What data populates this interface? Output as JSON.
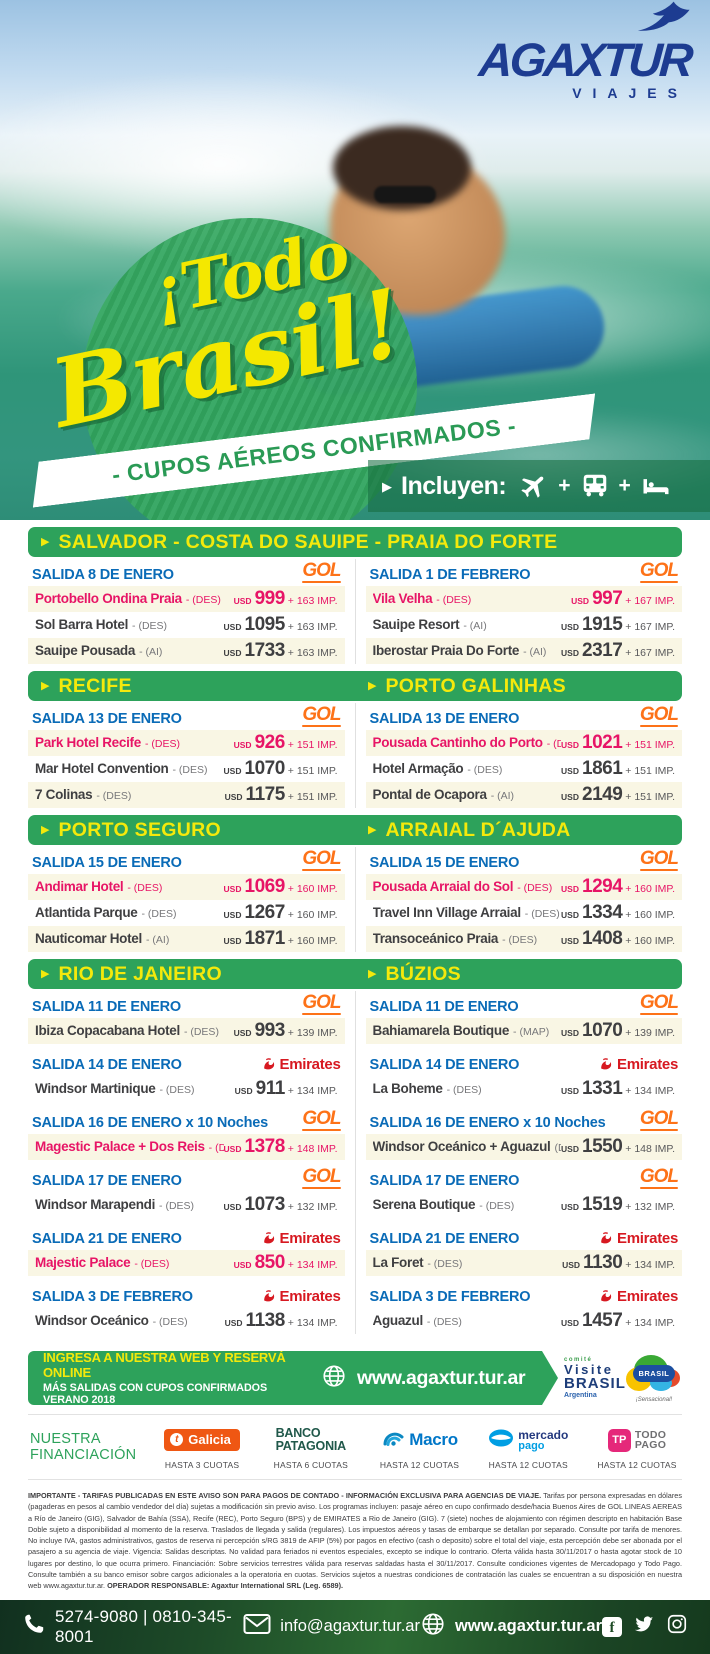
{
  "brand": {
    "name": "AGAXTUR",
    "sub": "VIAJES"
  },
  "ui": {
    "tri": "▶",
    "currency": "USD"
  },
  "hero": {
    "title_word1": "¡Todo",
    "title_word2": "Brasil!",
    "ribbon": "- CUPOS AÉREOS CONFIRMADOS -",
    "includes_label": "Incluyen:",
    "plus": "+",
    "includes_icons": [
      "plane-icon",
      "bus-icon",
      "bed-icon"
    ]
  },
  "colors": {
    "green": "#2da25b",
    "yellow": "#f4e90c",
    "blue_salida": "#0a6bb7",
    "pink_highlight": "#e71566",
    "gol_orange": "#fd7218",
    "emirates_red": "#d71921",
    "cream_row": "#f9f6e4",
    "brand_navy": "#1d3c91"
  },
  "sections": [
    {
      "id": "salvador",
      "headers": [
        {
          "title": "SALVADOR - COSTA DO SAUIPE - PRAIA DO FORTE"
        }
      ],
      "columns": [
        {
          "blocks": [
            {
              "salida": "SALIDA 8 DE ENERO",
              "airline": "GOL",
              "hotels": [
                {
                  "name": "Portobello Ondina Praia",
                  "plan": "- (DES)",
                  "price": "999",
                  "tax": "+ 163 IMP.",
                  "highlight": true
                },
                {
                  "name": "Sol Barra Hotel",
                  "plan": "- (DES)",
                  "price": "1095",
                  "tax": "+ 163 IMP."
                },
                {
                  "name": "Sauipe Pousada",
                  "plan": "- (AI)",
                  "price": "1733",
                  "tax": "+ 163 IMP."
                }
              ]
            }
          ]
        },
        {
          "blocks": [
            {
              "salida": "SALIDA 1 DE FEBRERO",
              "airline": "GOL",
              "hotels": [
                {
                  "name": "Vila Velha",
                  "plan": "- (DES)",
                  "price": "997",
                  "tax": "+ 167 IMP.",
                  "highlight": true
                },
                {
                  "name": "Sauipe Resort",
                  "plan": "- (AI)",
                  "price": "1915",
                  "tax": "+ 167 IMP."
                },
                {
                  "name": "Iberostar Praia Do Forte",
                  "plan": "- (AI)",
                  "price": "2317",
                  "tax": "+ 167 IMP."
                }
              ]
            }
          ]
        }
      ]
    },
    {
      "id": "recife-porto-galinhas",
      "headers": [
        {
          "title": "RECIFE"
        },
        {
          "title": "PORTO GALINHAS"
        }
      ],
      "columns": [
        {
          "blocks": [
            {
              "salida": "SALIDA 13 DE ENERO",
              "airline": "GOL",
              "hotels": [
                {
                  "name": "Park Hotel Recife",
                  "plan": "- (DES)",
                  "price": "926",
                  "tax": "+ 151 IMP.",
                  "highlight": true
                },
                {
                  "name": "Mar Hotel Convention",
                  "plan": "- (DES)",
                  "price": "1070",
                  "tax": "+ 151 IMP."
                },
                {
                  "name": "7 Colinas",
                  "plan": "- (DES)",
                  "price": "1175",
                  "tax": "+ 151 IMP."
                }
              ]
            }
          ]
        },
        {
          "blocks": [
            {
              "salida": "SALIDA 13 DE ENERO",
              "airline": "GOL",
              "hotels": [
                {
                  "name": "Pousada Cantinho do Porto",
                  "plan": "- (DES)",
                  "price": "1021",
                  "tax": "+ 151 IMP.",
                  "highlight": true
                },
                {
                  "name": "Hotel Armação",
                  "plan": "- (DES)",
                  "price": "1861",
                  "tax": "+ 151 IMP."
                },
                {
                  "name": "Pontal de Ocapora",
                  "plan": "- (AI)",
                  "price": "2149",
                  "tax": "+ 151 IMP."
                }
              ]
            }
          ]
        }
      ]
    },
    {
      "id": "porto-seguro-arraial",
      "headers": [
        {
          "title": "PORTO SEGURO"
        },
        {
          "title": "ARRAIAL D´AJUDA"
        }
      ],
      "columns": [
        {
          "blocks": [
            {
              "salida": "SALIDA 15 DE ENERO",
              "airline": "GOL",
              "hotels": [
                {
                  "name": "Andimar Hotel",
                  "plan": "- (DES)",
                  "price": "1069",
                  "tax": "+ 160 IMP.",
                  "highlight": true
                },
                {
                  "name": "Atlantida Parque",
                  "plan": "- (DES)",
                  "price": "1267",
                  "tax": "+ 160 IMP."
                },
                {
                  "name": "Nauticomar Hotel",
                  "plan": "- (AI)",
                  "price": "1871",
                  "tax": "+ 160 IMP."
                }
              ]
            }
          ]
        },
        {
          "blocks": [
            {
              "salida": "SALIDA 15 DE ENERO",
              "airline": "GOL",
              "hotels": [
                {
                  "name": "Pousada Arraial do Sol",
                  "plan": "- (DES)",
                  "price": "1294",
                  "tax": "+ 160 IMP.",
                  "highlight": true
                },
                {
                  "name": "Travel Inn Village Arraial",
                  "plan": "- (DES)",
                  "price": "1334",
                  "tax": "+ 160 IMP."
                },
                {
                  "name": "Transoceánico Praia",
                  "plan": "- (DES)",
                  "price": "1408",
                  "tax": "+ 160 IMP."
                }
              ]
            }
          ]
        }
      ]
    },
    {
      "id": "rio-buzios",
      "headers": [
        {
          "title": "RIO DE JANEIRO"
        },
        {
          "title": "BÚZIOS"
        }
      ],
      "columns": [
        {
          "blocks": [
            {
              "salida": "SALIDA 11 DE ENERO",
              "airline": "GOL",
              "hotels": [
                {
                  "name": "Ibiza Copacabana Hotel",
                  "plan": "- (DES)",
                  "price": "993",
                  "tax": "+ 139 IMP."
                }
              ]
            },
            {
              "salida": "SALIDA 14 DE ENERO",
              "airline": "Emirates",
              "hotels": [
                {
                  "name": "Windsor Martinique",
                  "plan": "- (DES)",
                  "price": "911",
                  "tax": "+ 134 IMP."
                }
              ]
            },
            {
              "salida": "SALIDA 16 DE ENERO x 10 Noches",
              "airline": "GOL",
              "hotels": [
                {
                  "name": "Magestic Palace + Dos Reis",
                  "plan": "- (DES)",
                  "price": "1378",
                  "tax": "+ 148 IMP.",
                  "highlight": true
                }
              ]
            },
            {
              "salida": "SALIDA 17 DE ENERO",
              "airline": "GOL",
              "hotels": [
                {
                  "name": "Windsor Marapendi",
                  "plan": "- (DES)",
                  "price": "1073",
                  "tax": "+ 132 IMP."
                }
              ]
            },
            {
              "salida": "SALIDA 21 DE ENERO",
              "airline": "Emirates",
              "hotels": [
                {
                  "name": "Majestic Palace",
                  "plan": "- (DES)",
                  "price": "850",
                  "tax": "+ 134 IMP.",
                  "highlight": true
                }
              ]
            },
            {
              "salida": "SALIDA 3 DE FEBRERO",
              "airline": "Emirates",
              "hotels": [
                {
                  "name": "Windsor Oceánico",
                  "plan": "- (DES)",
                  "price": "1138",
                  "tax": "+ 134 IMP."
                }
              ]
            }
          ]
        },
        {
          "blocks": [
            {
              "salida": "SALIDA 11 DE ENERO",
              "airline": "GOL",
              "hotels": [
                {
                  "name": "Bahiamarela Boutique",
                  "plan": "- (MAP)",
                  "price": "1070",
                  "tax": "+ 139 IMP."
                }
              ]
            },
            {
              "salida": "SALIDA 14 DE ENERO",
              "airline": "Emirates",
              "hotels": [
                {
                  "name": "La Boheme",
                  "plan": "- (DES)",
                  "price": "1331",
                  "tax": "+ 134 IMP."
                }
              ]
            },
            {
              "salida": "SALIDA 16 DE ENERO x 10 Noches",
              "airline": "GOL",
              "hotels": [
                {
                  "name": "Windsor Oceánico + Aguazul",
                  "plan": "(DES)",
                  "price": "1550",
                  "tax": "+ 148 IMP."
                }
              ]
            },
            {
              "salida": "SALIDA 17 DE ENERO",
              "airline": "GOL",
              "hotels": [
                {
                  "name": "Serena Boutique",
                  "plan": "- (DES)",
                  "price": "1519",
                  "tax": "+ 132 IMP."
                }
              ]
            },
            {
              "salida": "SALIDA 21 DE ENERO",
              "airline": "Emirates",
              "hotels": [
                {
                  "name": "La Foret",
                  "plan": "- (DES)",
                  "price": "1130",
                  "tax": "+ 134 IMP."
                }
              ]
            },
            {
              "salida": "SALIDA 3 DE FEBRERO",
              "airline": "Emirates",
              "hotels": [
                {
                  "name": "Aguazul",
                  "plan": "- (DES)",
                  "price": "1457",
                  "tax": "+ 134 IMP."
                }
              ]
            }
          ]
        }
      ]
    }
  ],
  "web_banner": {
    "line1": "INGRESA A NUESTRA WEB Y RESERVÁ ONLINE",
    "line2": "MÁS SALIDAS CON CUPOS CONFIRMADOS VERANO 2018",
    "url": "www.agaxtur.tur.ar",
    "visite": {
      "l1": "comité",
      "l2": "Visite",
      "l3": "BRASIL",
      "l4": "Argentina"
    },
    "brasil": {
      "label": "BRASIL",
      "sub": "¡Sensacional!"
    }
  },
  "financing": {
    "title1": "NUESTRA",
    "title2": "FINANCIACIÓN",
    "partners": [
      {
        "label": "Galicia",
        "icon_glyph": "t",
        "cuotas": "HASTA 3 CUOTAS"
      },
      {
        "line1": "BANCO",
        "line2": "PATAGONIA",
        "cuotas": "HASTA 6 CUOTAS"
      },
      {
        "label": "Macro",
        "cuotas": "HASTA 12 CUOTAS"
      },
      {
        "line1": "mercado",
        "line2": "pago",
        "cuotas": "HASTA 12 CUOTAS"
      },
      {
        "badge": "TP",
        "line1": "TODO",
        "line2": "PAGO",
        "cuotas": "HASTA 12 CUOTAS"
      }
    ]
  },
  "fine_print": {
    "lead": "IMPORTANTE - TARIFAS PUBLICADAS EN ESTE AVISO SON PARA PAGOS DE CONTADO - INFORMACIÓN EXCLUSIVA PARA AGENCIAS DE VIAJE.",
    "body": " Tarifas por persona expresadas en dólares (pagaderas en pesos al cambio vendedor del día) sujetas a modificación sin previo aviso. Los programas incluyen: pasaje aéreo en cupo confirmado desde/hacia Buenos Aires de GOL LINEAS AEREAS a Río de Janeiro (GIG), Salvador de Bahía (SSA), Recife (REC), Porto Seguro (BPS) y de EMIRATES a Rio de Janeiro (GIG). 7 (siete) noches de alojamiento con régimen descripto en habitación Base Doble sujeto a disponibilidad al momento de la reserva. Traslados de llegada y salida (regulares). Los impuestos aéreos y tasas de embarque se detallan por separado. Consulte por tarifa de menores. No incluye IVA, gastos administrativos, gastos de reserva ni percepción s/RG 3819 de AFIP (5%) por pagos en efectivo (cash o deposito) sobre el total del viaje, esta percepción debe ser abonada por el pasajero a su agencia de viaje. Vigencia: Salidas descriptas. No validad para feriados ni eventos especiales, excepto se indique lo contrario. Oferta válida hasta 30/11/2017 o hasta agotar stock de 10 lugares por destino, lo que ocurra primero. Financiación: Sobre servicios terrestres válida para reservas saldadas hasta el 30/11/2017. Consulte condiciones vigentes de Mercadopago y Todo Pago. Consulte también a su banco emisor sobre cargos adicionales a la operatoria en cuotas. Servicios sujetos a nuestras condiciones de contratación las cuales se encuentran a su disposición en nuestra web www.agaxtur.tur.ar. ",
    "operator": "OPERADOR RESPONSABLE: Agaxtur International SRL (Leg. 6589)."
  },
  "footer": {
    "phones": "5274-9080 | 0810-345-8001",
    "email": "info@agaxtur.tur.ar",
    "url": "www.agaxtur.tur.ar",
    "social": [
      "facebook-icon",
      "twitter-icon",
      "instagram-icon"
    ],
    "fb_glyph": "f"
  }
}
